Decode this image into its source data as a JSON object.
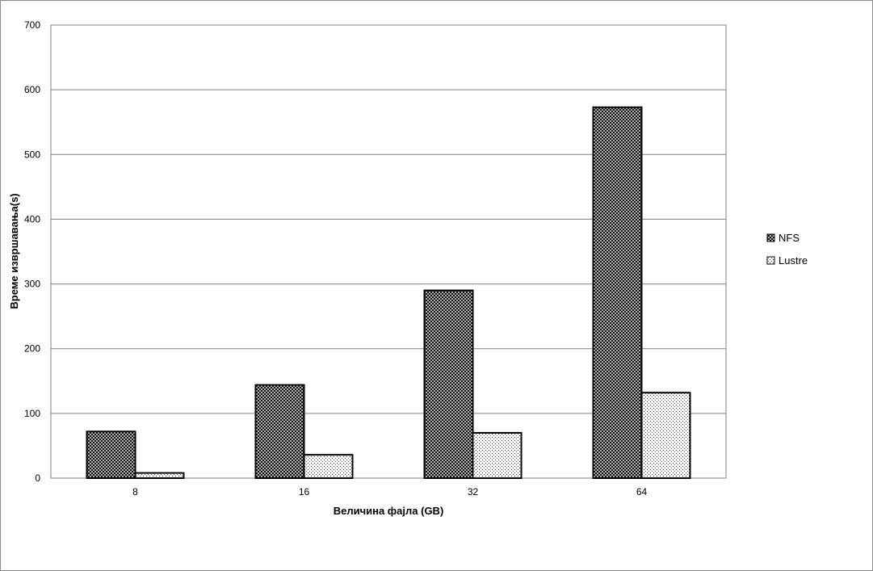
{
  "chart_data": {
    "type": "bar",
    "categories": [
      "8",
      "16",
      "32",
      "64"
    ],
    "series": [
      {
        "name": "NFS",
        "values": [
          72,
          144,
          290,
          573
        ],
        "pattern": "crosshatch"
      },
      {
        "name": "Lustre",
        "values": [
          8,
          36,
          70,
          132
        ],
        "pattern": "dots"
      }
    ],
    "xlabel": "Величина фајла (GB)",
    "ylabel": "Време извршавања(s)",
    "ylim": [
      0,
      700
    ],
    "yticks": [
      0,
      100,
      200,
      300,
      400,
      500,
      600,
      700
    ],
    "grid": true,
    "legend_position": "right"
  }
}
